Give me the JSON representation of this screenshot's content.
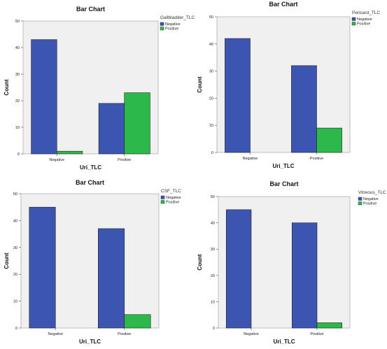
{
  "chart_data": [
    {
      "type": "bar",
      "title": "Bar Chart",
      "xlabel": "Uri_TLC",
      "ylabel": "Count",
      "categories": [
        "Negative",
        "Positive"
      ],
      "legend_title": "Gallbladder_TLC",
      "legend_position": "top-right",
      "ylim": [
        0,
        50
      ],
      "yticks": [
        0,
        10,
        20,
        30,
        40,
        50
      ],
      "grid": false,
      "series": [
        {
          "name": "Negative",
          "color": "#3c55b0",
          "values": [
            43,
            19
          ]
        },
        {
          "name": "Positive",
          "color": "#2db84a",
          "values": [
            1,
            23
          ]
        }
      ]
    },
    {
      "type": "bar",
      "title": "Bar Chart",
      "xlabel": "Uri_TLC",
      "ylabel": "Count",
      "categories": [
        "Negative",
        "Positive"
      ],
      "legend_title": "Pericard_TLC",
      "legend_position": "top-right",
      "ylim": [
        0,
        50
      ],
      "yticks": [
        0,
        10,
        20,
        30,
        40,
        50
      ],
      "grid": false,
      "series": [
        {
          "name": "Negative",
          "color": "#3c55b0",
          "values": [
            42,
            32
          ]
        },
        {
          "name": "Positive",
          "color": "#2db84a",
          "values": [
            0,
            9
          ]
        }
      ]
    },
    {
      "type": "bar",
      "title": "Bar Chart",
      "xlabel": "Uri_TLC",
      "ylabel": "Count",
      "categories": [
        "Negative",
        "Positive"
      ],
      "legend_title": "CSF_TLC",
      "legend_position": "top-right",
      "ylim": [
        0,
        50
      ],
      "yticks": [
        0,
        10,
        20,
        30,
        40,
        50
      ],
      "grid": false,
      "series": [
        {
          "name": "Negative",
          "color": "#3c55b0",
          "values": [
            45,
            37
          ]
        },
        {
          "name": "Positive",
          "color": "#2db84a",
          "values": [
            0,
            5
          ]
        }
      ]
    },
    {
      "type": "bar",
      "title": "Bar Chart",
      "xlabel": "Uri_TLC",
      "ylabel": "Count",
      "categories": [
        "Negative",
        "Positive"
      ],
      "legend_title": "Vitreous_TLC",
      "legend_position": "top-right",
      "ylim": [
        0,
        50
      ],
      "yticks": [
        0,
        10,
        20,
        30,
        40,
        50
      ],
      "grid": false,
      "series": [
        {
          "name": "Negative",
          "color": "#3c55b0",
          "values": [
            45,
            40
          ]
        },
        {
          "name": "Positive",
          "color": "#2db84a",
          "values": [
            0,
            2
          ]
        }
      ]
    }
  ]
}
